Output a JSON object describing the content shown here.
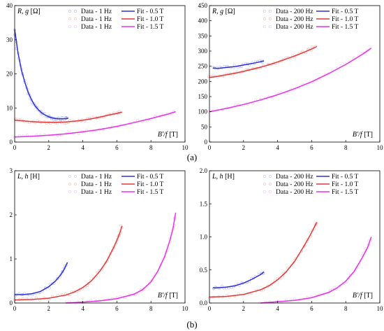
{
  "figure": {
    "label_a": "(a)",
    "label_b": "(b)"
  },
  "colors": {
    "fit_05": "#2f2fd8",
    "fit_10": "#e03a3a",
    "fit_15": "#e632e6",
    "data_05": "#9fa7e8",
    "data_10": "#f2a0a0",
    "data_15": "#f2a8f2"
  },
  "chart_data": [
    {
      "type": "line",
      "ylabel_var": "R, g",
      "ylabel_unit": "[Ω]",
      "xlabel_var": "B'/f",
      "xlabel_unit": "[T]",
      "xlim": [
        0,
        10
      ],
      "ylim": [
        0,
        40
      ],
      "xticks": [
        "0",
        "2",
        "4",
        "6",
        "8",
        "10"
      ],
      "yticks": [
        "0",
        "10",
        "20",
        "30",
        "40"
      ],
      "legend": [
        {
          "label": "Data - 1 Hz",
          "kind": "data",
          "color": "#9fa7e8"
        },
        {
          "label": "Fit - 0.5 T",
          "kind": "fit",
          "color": "#2f2fd8"
        },
        {
          "label": "Data - 1 Hz",
          "kind": "data",
          "color": "#f2a0a0"
        },
        {
          "label": "Fit - 1.0 T",
          "kind": "fit",
          "color": "#e03a3a"
        },
        {
          "label": "Data - 1 Hz",
          "kind": "data",
          "color": "#f2a8f2"
        },
        {
          "label": "Fit - 1.5 T",
          "kind": "fit",
          "color": "#e632e6"
        }
      ],
      "series": [
        {
          "color": "#2f2fd8",
          "data_color": "#9fa7e8",
          "x": [
            0.0,
            0.2,
            0.4,
            0.6,
            0.8,
            1.0,
            1.2,
            1.4,
            1.6,
            1.8,
            2.0,
            2.2,
            2.4,
            2.6,
            2.8,
            3.0,
            3.15
          ],
          "y": [
            33,
            26,
            21,
            17.5,
            14.5,
            12.3,
            10.6,
            9.4,
            8.5,
            7.9,
            7.4,
            7.1,
            6.9,
            6.8,
            6.8,
            6.85,
            7.0
          ]
        },
        {
          "color": "#e03a3a",
          "data_color": "#f2a0a0",
          "x": [
            0.0,
            0.5,
            1.0,
            1.5,
            2.0,
            2.5,
            3.0,
            3.5,
            4.0,
            4.5,
            5.0,
            5.5,
            6.0,
            6.3
          ],
          "y": [
            6.4,
            6.2,
            6.0,
            5.85,
            5.8,
            5.8,
            5.9,
            6.1,
            6.4,
            6.8,
            7.3,
            7.9,
            8.4,
            8.8
          ]
        },
        {
          "color": "#e632e6",
          "data_color": "#f2a8f2",
          "x": [
            0.0,
            1.0,
            2.0,
            3.0,
            4.0,
            5.0,
            6.0,
            7.0,
            8.0,
            9.0,
            9.45
          ],
          "y": [
            1.5,
            1.7,
            2.0,
            2.4,
            3.0,
            3.7,
            4.6,
            5.7,
            6.9,
            8.2,
            8.9
          ]
        }
      ]
    },
    {
      "type": "line",
      "ylabel_var": "R, g",
      "ylabel_unit": "[Ω]",
      "xlabel_var": "B'/f",
      "xlabel_unit": "[T]",
      "xlim": [
        0,
        10
      ],
      "ylim": [
        0,
        450
      ],
      "xticks": [
        "0",
        "2",
        "4",
        "6",
        "8",
        "10"
      ],
      "yticks": [
        "0",
        "50",
        "100",
        "150",
        "200",
        "250",
        "300",
        "350",
        "400",
        "450"
      ],
      "legend": [
        {
          "label": "Data - 200 Hz",
          "kind": "data",
          "color": "#9fa7e8"
        },
        {
          "label": "Fit - 0.5 T",
          "kind": "fit",
          "color": "#2f2fd8"
        },
        {
          "label": "Data - 200 Hz",
          "kind": "data",
          "color": "#f2a0a0"
        },
        {
          "label": "Fit - 1.0 T",
          "kind": "fit",
          "color": "#e03a3a"
        },
        {
          "label": "Data - 200 Hz",
          "kind": "data",
          "color": "#f2a8f2"
        },
        {
          "label": "Fit - 1.5 T",
          "kind": "fit",
          "color": "#e632e6"
        }
      ],
      "series": [
        {
          "color": "#2f2fd8",
          "data_color": "#9fa7e8",
          "x": [
            0.2,
            0.5,
            1.0,
            1.5,
            2.0,
            2.5,
            3.0,
            3.2
          ],
          "y": [
            244,
            243,
            246,
            249,
            254,
            259,
            265,
            268
          ]
        },
        {
          "color": "#e03a3a",
          "data_color": "#f2a0a0",
          "x": [
            0.0,
            0.5,
            1.0,
            1.5,
            2.0,
            2.5,
            3.0,
            3.5,
            4.0,
            4.5,
            5.0,
            5.5,
            6.0,
            6.3
          ],
          "y": [
            213,
            217,
            222,
            227,
            233,
            240,
            247,
            255,
            264,
            274,
            284,
            295,
            307,
            315
          ]
        },
        {
          "color": "#e632e6",
          "data_color": "#f2a8f2",
          "x": [
            0.0,
            1.0,
            2.0,
            3.0,
            4.0,
            5.0,
            6.0,
            7.0,
            8.0,
            9.0,
            9.5
          ],
          "y": [
            100,
            111,
            124,
            139,
            156,
            176,
            199,
            226,
            256,
            290,
            310
          ]
        }
      ]
    },
    {
      "type": "line",
      "ylabel_var": "L, h",
      "ylabel_unit": "[H]",
      "xlabel_var": "B'/f",
      "xlabel_unit": "[T]",
      "xlim": [
        0,
        10
      ],
      "ylim": [
        0,
        3
      ],
      "xticks": [
        "0",
        "2",
        "4",
        "6",
        "8",
        "10"
      ],
      "yticks": [
        "0",
        "1",
        "2",
        "3"
      ],
      "legend": [
        {
          "label": "Data - 1 Hz",
          "kind": "data",
          "color": "#9fa7e8"
        },
        {
          "label": "Fit - 0.5 T",
          "kind": "fit",
          "color": "#2f2fd8"
        },
        {
          "label": "Data - 1 Hz",
          "kind": "data",
          "color": "#f2a0a0"
        },
        {
          "label": "Fit - 1.0 T",
          "kind": "fit",
          "color": "#e03a3a"
        },
        {
          "label": "Data - 1 Hz",
          "kind": "data",
          "color": "#f2a8f2"
        },
        {
          "label": "Fit - 1.5 T",
          "kind": "fit",
          "color": "#e632e6"
        }
      ],
      "series": [
        {
          "color": "#2f2fd8",
          "data_color": "#9fa7e8",
          "x": [
            0.0,
            0.5,
            1.0,
            1.5,
            2.0,
            2.4,
            2.7,
            2.9,
            3.1
          ],
          "y": [
            0.19,
            0.19,
            0.21,
            0.26,
            0.37,
            0.5,
            0.64,
            0.76,
            0.92
          ]
        },
        {
          "color": "#e03a3a",
          "data_color": "#f2a0a0",
          "x": [
            0.0,
            1.0,
            2.0,
            3.0,
            3.5,
            4.0,
            4.5,
            5.0,
            5.4,
            5.8,
            6.0,
            6.2,
            6.3
          ],
          "y": [
            0.07,
            0.08,
            0.11,
            0.18,
            0.25,
            0.35,
            0.5,
            0.72,
            0.95,
            1.25,
            1.42,
            1.62,
            1.75
          ]
        },
        {
          "color": "#e632e6",
          "data_color": "#f2a8f2",
          "x": [
            3.0,
            4.0,
            5.0,
            6.0,
            7.0,
            7.5,
            8.0,
            8.4,
            8.8,
            9.1,
            9.3,
            9.45
          ],
          "y": [
            0.0,
            0.02,
            0.05,
            0.1,
            0.2,
            0.3,
            0.48,
            0.72,
            1.05,
            1.4,
            1.7,
            2.05
          ]
        }
      ]
    },
    {
      "type": "line",
      "ylabel_var": "L, h",
      "ylabel_unit": "[H]",
      "xlabel_var": "B'/f",
      "xlabel_unit": "[T]",
      "xlim": [
        0,
        10
      ],
      "ylim": [
        0,
        2.0
      ],
      "xticks": [
        "0",
        "2",
        "4",
        "6",
        "8",
        "10"
      ],
      "yticks": [
        "0.0",
        "0.5",
        "1.0",
        "1.5",
        "2.0"
      ],
      "legend": [
        {
          "label": "Data - 200 Hz",
          "kind": "data",
          "color": "#9fa7e8"
        },
        {
          "label": "Fit - 0.5 T",
          "kind": "fit",
          "color": "#2f2fd8"
        },
        {
          "label": "Data - 200 Hz",
          "kind": "data",
          "color": "#f2a0a0"
        },
        {
          "label": "Fit - 1.0 T",
          "kind": "fit",
          "color": "#e03a3a"
        },
        {
          "label": "Data - 200 Hz",
          "kind": "data",
          "color": "#f2a8f2"
        },
        {
          "label": "Fit - 1.5 T",
          "kind": "fit",
          "color": "#e632e6"
        }
      ],
      "series": [
        {
          "color": "#2f2fd8",
          "data_color": "#9fa7e8",
          "x": [
            0.2,
            0.5,
            1.0,
            1.5,
            2.0,
            2.5,
            3.0,
            3.2
          ],
          "y": [
            0.23,
            0.23,
            0.24,
            0.26,
            0.3,
            0.36,
            0.43,
            0.47
          ]
        },
        {
          "color": "#e03a3a",
          "data_color": "#f2a0a0",
          "x": [
            0.0,
            1.0,
            2.0,
            3.0,
            3.5,
            4.0,
            4.5,
            5.0,
            5.5,
            5.9,
            6.2,
            6.3
          ],
          "y": [
            0.09,
            0.1,
            0.13,
            0.2,
            0.26,
            0.35,
            0.47,
            0.63,
            0.84,
            1.02,
            1.17,
            1.22
          ]
        },
        {
          "color": "#e632e6",
          "data_color": "#f2a8f2",
          "x": [
            3.0,
            4.0,
            5.0,
            6.0,
            7.0,
            7.5,
            8.0,
            8.5,
            9.0,
            9.3,
            9.5
          ],
          "y": [
            0.0,
            0.02,
            0.04,
            0.08,
            0.16,
            0.23,
            0.33,
            0.48,
            0.7,
            0.85,
            1.0
          ]
        }
      ]
    }
  ]
}
